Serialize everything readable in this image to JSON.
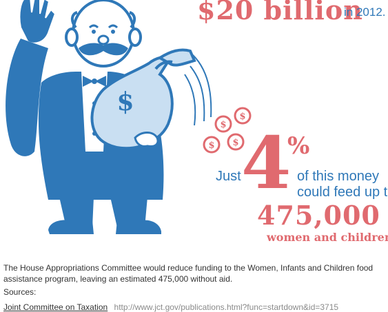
{
  "infographic": {
    "headline_amount": "$20 billion",
    "headline_year": "in 2012.",
    "just_label": "Just",
    "big_percent_digit": "4",
    "percent_sign": "%",
    "money_line1": "of this money",
    "money_line2": "could feed up to",
    "big_number": "475,000",
    "women_children": "women and children.",
    "bag_symbol": "$",
    "coin_symbol": "$"
  },
  "caption": {
    "text": "The House Appropriations Committee would reduce funding to the Women, Infants and Children food assistance program, leaving an estimated 475,000 without aid."
  },
  "sources": {
    "label": "Sources:",
    "items": [
      {
        "name": "Joint Committee on Taxation",
        "url": "http://www.jct.gov/publications.html?func=startdown&id=3715"
      }
    ]
  },
  "colors": {
    "blue": "#2f78b8",
    "coral": "#e06a6f",
    "light_blue": "#c9dff2"
  },
  "icons": [
    "mustached-man-illustration",
    "money-bag-icon",
    "coin-icon"
  ]
}
